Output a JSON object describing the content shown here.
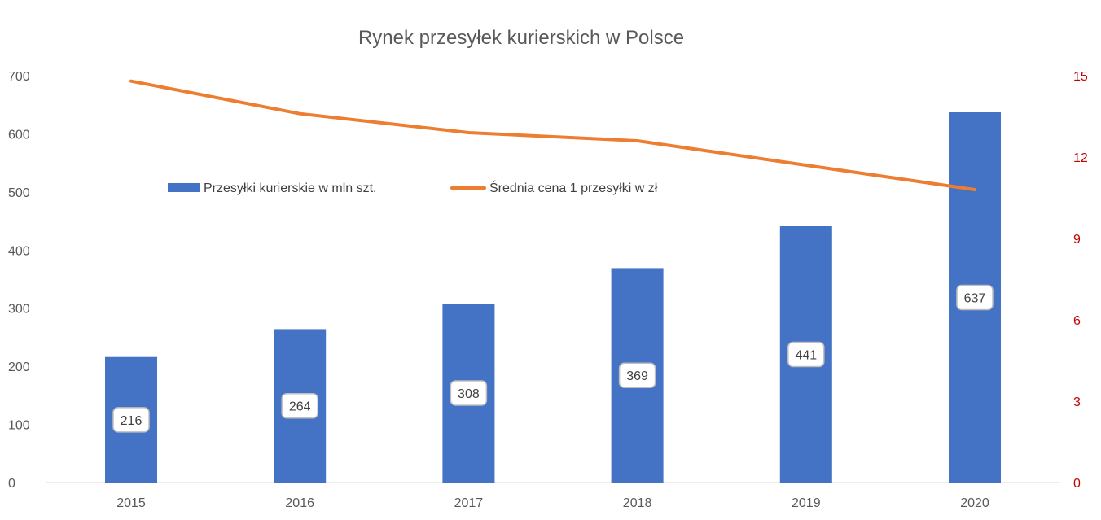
{
  "chart_data": {
    "type": "bar",
    "title": "Rynek przesyłek kurierskich w Polsce",
    "categories": [
      "2015",
      "2016",
      "2017",
      "2018",
      "2019",
      "2020"
    ],
    "series": [
      {
        "name": "Przesyłki kurierskie w mln szt.",
        "type": "bar",
        "axis": "left",
        "color": "#4472c4",
        "values": [
          216,
          264,
          308,
          369,
          441,
          637
        ],
        "data_labels": [
          "216",
          "264",
          "308",
          "369",
          "441",
          "637"
        ]
      },
      {
        "name": "Średnia cena 1 przesyłki w zł",
        "type": "line",
        "axis": "right",
        "color": "#ed7d31",
        "values": [
          14.8,
          13.6,
          12.9,
          12.6,
          11.7,
          10.8
        ]
      }
    ],
    "y_left": {
      "ylim": [
        0,
        700
      ],
      "ticks": [
        "0",
        "100",
        "200",
        "300",
        "400",
        "500",
        "600",
        "700"
      ]
    },
    "y_right": {
      "ylim": [
        0,
        15
      ],
      "ticks": [
        "0",
        "3",
        "6",
        "9",
        "12",
        "15"
      ],
      "color": "#c00000"
    },
    "grid": false,
    "legend_position": "top-left, inside plot"
  }
}
